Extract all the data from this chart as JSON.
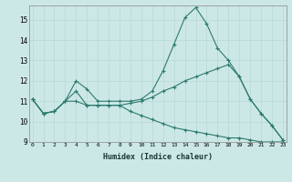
{
  "bg_color": "#cce8e6",
  "grid_color": "#b8d8d5",
  "line_color": "#2d7a6e",
  "x_min": 0,
  "x_max": 23,
  "y_min": 9,
  "y_max": 15.7,
  "xlabel": "Humidex (Indice chaleur)",
  "series": [
    [
      11.1,
      10.4,
      10.5,
      11.0,
      12.0,
      11.6,
      11.0,
      11.0,
      11.0,
      11.0,
      11.1,
      11.5,
      12.5,
      13.8,
      15.1,
      15.6,
      14.8,
      13.6,
      13.0,
      12.2,
      11.1,
      10.4,
      9.8,
      9.1
    ],
    [
      11.1,
      10.4,
      10.5,
      11.0,
      11.0,
      10.8,
      10.8,
      10.8,
      10.8,
      10.9,
      11.0,
      11.2,
      11.5,
      11.7,
      12.0,
      12.2,
      12.4,
      12.6,
      12.8,
      12.2,
      11.1,
      10.4,
      9.8,
      9.1
    ],
    [
      11.1,
      10.4,
      10.5,
      11.0,
      11.5,
      10.8,
      10.8,
      10.8,
      10.8,
      10.5,
      10.3,
      10.1,
      9.9,
      9.7,
      9.6,
      9.5,
      9.4,
      9.3,
      9.2,
      9.2,
      9.1,
      9.0,
      9.0,
      9.0
    ]
  ],
  "yticks": [
    9,
    10,
    11,
    12,
    13,
    14,
    15
  ],
  "xticks": [
    0,
    1,
    2,
    3,
    4,
    5,
    6,
    7,
    8,
    9,
    10,
    11,
    12,
    13,
    14,
    15,
    16,
    17,
    18,
    19,
    20,
    21,
    22,
    23
  ]
}
